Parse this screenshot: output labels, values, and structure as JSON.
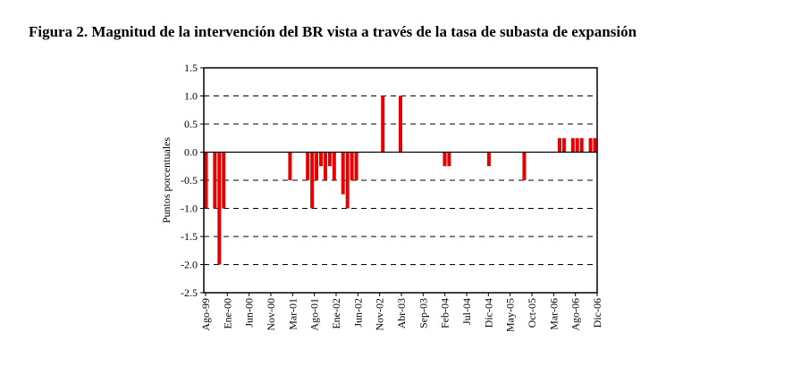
{
  "chart_data": {
    "type": "bar",
    "title": "Figura 2. Magnitud de la intervención del BR vista a través de la tasa de subasta de expansión",
    "ylabel": "Puntos porcentuales",
    "xlabel": "",
    "ylim": [
      -2.5,
      1.5
    ],
    "yticks": [
      "1.5",
      "1.0",
      "0.5",
      "0.0",
      "-0.5",
      "-1.0",
      "-1.5",
      "-2.0",
      "-2.5"
    ],
    "ytick_values": [
      1.5,
      1.0,
      0.5,
      0.0,
      -0.5,
      -1.0,
      -1.5,
      -2.0,
      -2.5
    ],
    "xtick_labels": [
      "Ago-99",
      "Ene-00",
      "Jun-00",
      "Nov-00",
      "Mar-01",
      "Ago-01",
      "Ene-02",
      "Jun-02",
      "Nov-02",
      "Abr-03",
      "Sep-03",
      "Feb-04",
      "Jul-04",
      "Dic-04",
      "May-05",
      "Oct-05",
      "Mar-06",
      "Ago-06",
      "Dic-06"
    ],
    "x_range_months": [
      0,
      88
    ],
    "grid": "horizontal dashed",
    "bar_color": "#e80000",
    "bars": [
      {
        "date": "Ago-99",
        "month": 0,
        "value": -1.0
      },
      {
        "date": "Oct-99",
        "month": 2,
        "value": -1.0
      },
      {
        "date": "Nov-99",
        "month": 3,
        "value": -2.0
      },
      {
        "date": "Dic-99",
        "month": 4,
        "value": -1.0
      },
      {
        "date": "Mar-01",
        "month": 19,
        "value": -0.5
      },
      {
        "date": "Jul-01",
        "month": 23,
        "value": -0.5
      },
      {
        "date": "Ago-01",
        "month": 24,
        "value": -1.0
      },
      {
        "date": "Sep-01",
        "month": 25,
        "value": -0.5
      },
      {
        "date": "Oct-01",
        "month": 26,
        "value": -0.25
      },
      {
        "date": "Nov-01",
        "month": 27,
        "value": -0.5
      },
      {
        "date": "Dic-01",
        "month": 28,
        "value": -0.25
      },
      {
        "date": "Ene-02",
        "month": 29,
        "value": -0.5
      },
      {
        "date": "Mar-02",
        "month": 31,
        "value": -0.75
      },
      {
        "date": "Abr-02",
        "month": 32,
        "value": -1.0
      },
      {
        "date": "May-02",
        "month": 33,
        "value": -0.5
      },
      {
        "date": "Jun-02",
        "month": 34,
        "value": -0.5
      },
      {
        "date": "Dic-02",
        "month": 40,
        "value": 1.0
      },
      {
        "date": "Abr-03",
        "month": 44,
        "value": 1.0
      },
      {
        "date": "Feb-04",
        "month": 54,
        "value": -0.25
      },
      {
        "date": "Mar-04",
        "month": 55,
        "value": -0.25
      },
      {
        "date": "Dic-04",
        "month": 64,
        "value": -0.25
      },
      {
        "date": "Ago-05",
        "month": 72,
        "value": -0.5
      },
      {
        "date": "Abr-06",
        "month": 80,
        "value": 0.25
      },
      {
        "date": "May-06",
        "month": 81,
        "value": 0.25
      },
      {
        "date": "Jul-06",
        "month": 83,
        "value": 0.25
      },
      {
        "date": "Ago-06",
        "month": 84,
        "value": 0.25
      },
      {
        "date": "Sep-06",
        "month": 85,
        "value": 0.25
      },
      {
        "date": "Nov-06",
        "month": 87,
        "value": 0.25
      },
      {
        "date": "Dic-06",
        "month": 88,
        "value": 0.25
      }
    ]
  }
}
